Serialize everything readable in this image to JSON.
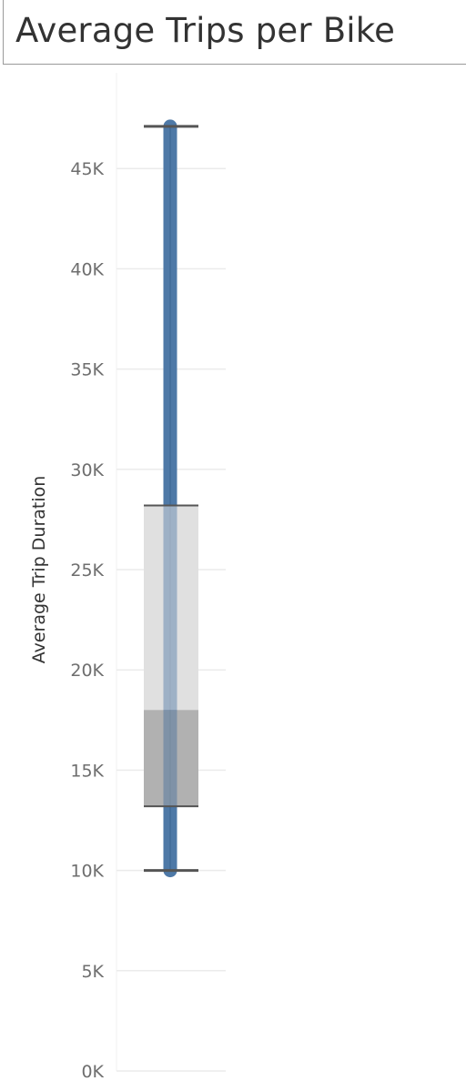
{
  "title": "Average Trips per Bike",
  "chart_data": {
    "type": "boxplot",
    "title": "Average Trips per Bike",
    "ylabel": "Average Trip Duration",
    "ylim": [
      0,
      48000
    ],
    "yticks": [
      0,
      5000,
      10000,
      15000,
      20000,
      25000,
      30000,
      35000,
      40000,
      45000
    ],
    "ytick_labels": [
      "0K",
      "5K",
      "10K",
      "15K",
      "20K",
      "25K",
      "30K",
      "35K",
      "40K",
      "45K"
    ],
    "grid": true,
    "box": {
      "min": 10000,
      "q1": 13200,
      "median": 18000,
      "q3": 28200,
      "max": 47100
    },
    "series_range": {
      "low": 10000,
      "high": 47100
    },
    "colors": {
      "series": "#4e79a7",
      "box_upper": "#e0e0e0",
      "box_lower": "#bdbdbd",
      "whisker": "#555555",
      "grid": "#ebebeb",
      "axis_text": "#6e6e6e"
    }
  }
}
